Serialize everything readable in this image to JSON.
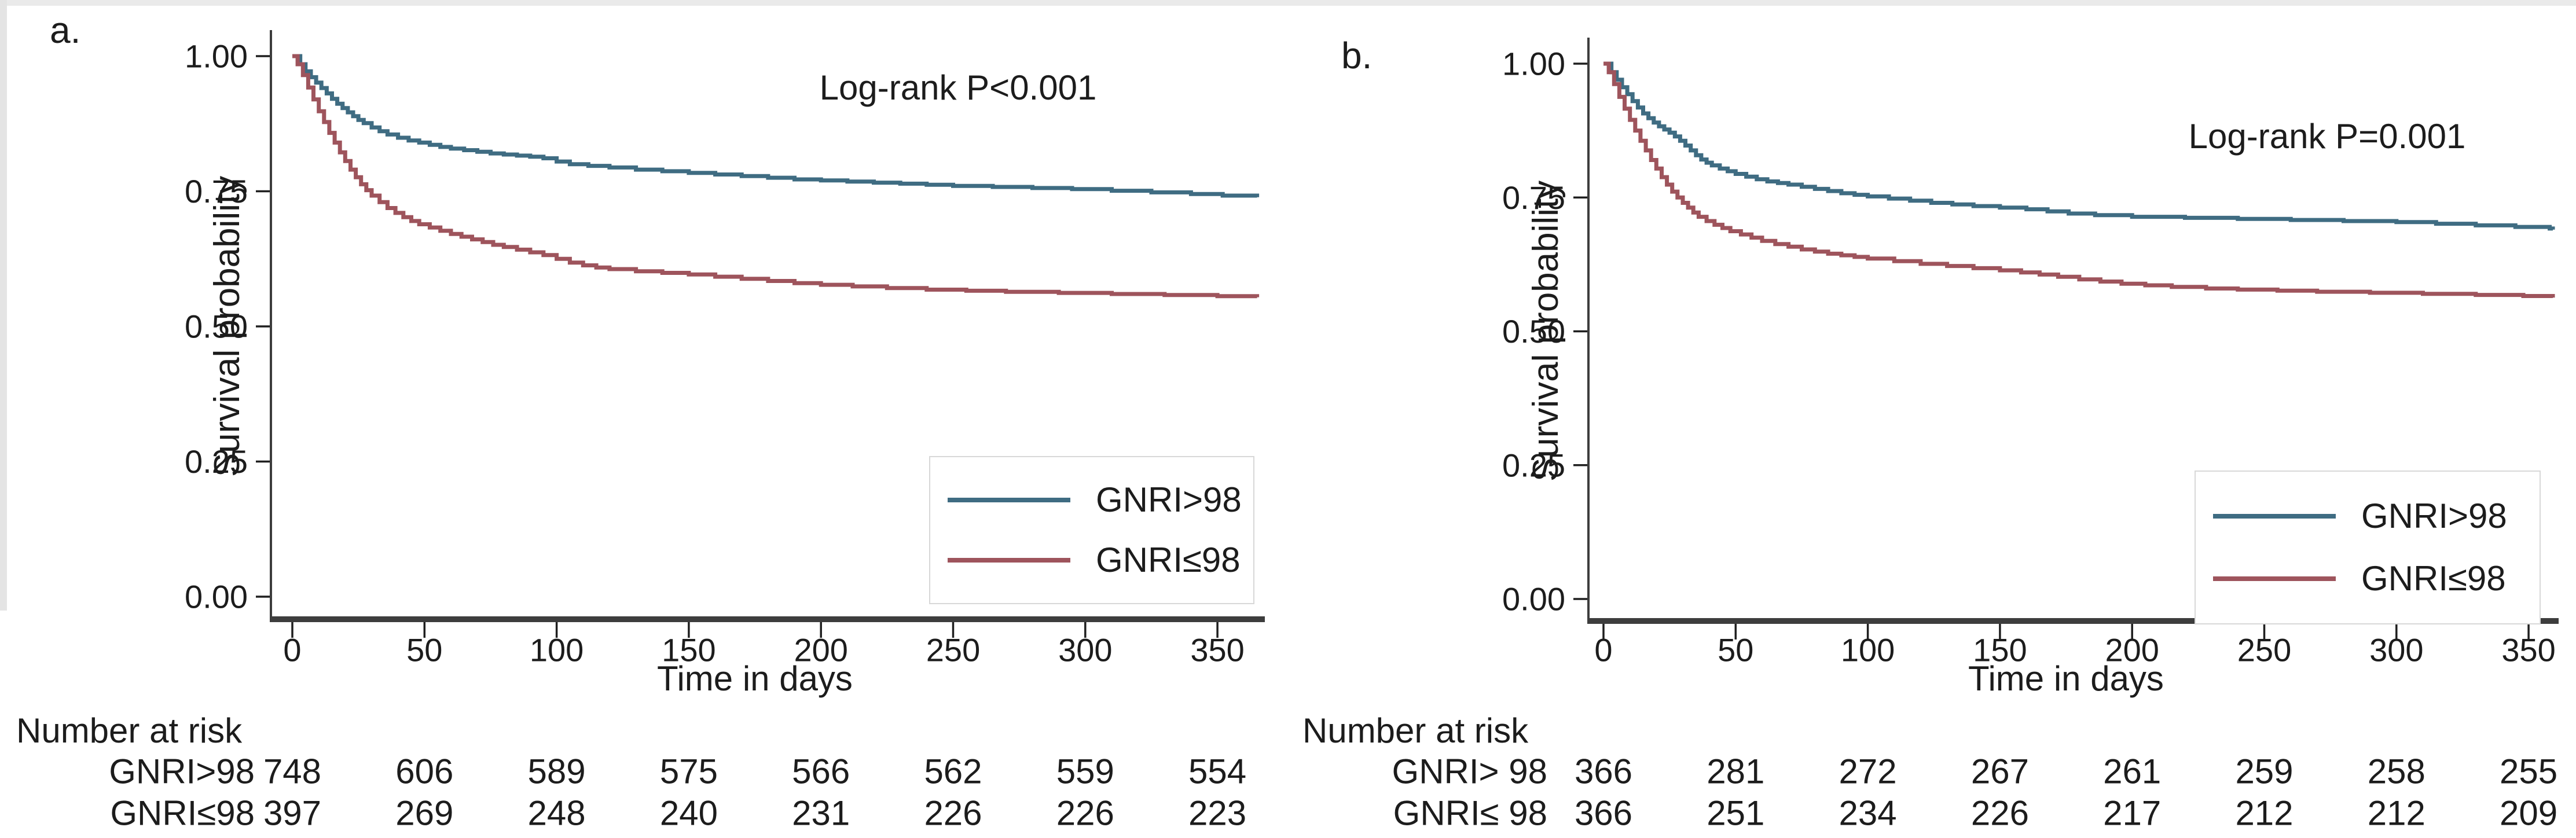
{
  "chart_data": [
    {
      "type": "line",
      "subtype": "kaplan-meier-step",
      "panel_label": "a.",
      "annotation": "Log-rank P<0.001",
      "xlabel": "Time in days",
      "ylabel": "Survival probability",
      "xlim": [
        0,
        365
      ],
      "ylim": [
        0.0,
        1.0
      ],
      "xticks": [
        0,
        50,
        100,
        150,
        200,
        250,
        300,
        350
      ],
      "yticks": [
        1.0,
        0.75,
        0.5,
        0.25,
        0.0
      ],
      "ytick_labels": [
        "1.00",
        "0.75",
        "0.50",
        "0.25",
        "0.00"
      ],
      "grid": false,
      "legend_position": "inside-bottom-right",
      "series": [
        {
          "name": "GNRI>98",
          "color": "#3f6c82",
          "points": [
            [
              0,
              1.0
            ],
            [
              3,
              0.985
            ],
            [
              5,
              0.972
            ],
            [
              7,
              0.961
            ],
            [
              9,
              0.951
            ],
            [
              11,
              0.941
            ],
            [
              13,
              0.931
            ],
            [
              15,
              0.921
            ],
            [
              17,
              0.912
            ],
            [
              19,
              0.904
            ],
            [
              21,
              0.896
            ],
            [
              23,
              0.889
            ],
            [
              25,
              0.882
            ],
            [
              27,
              0.876
            ],
            [
              30,
              0.868
            ],
            [
              33,
              0.861
            ],
            [
              36,
              0.855
            ],
            [
              40,
              0.849
            ],
            [
              44,
              0.844
            ],
            [
              48,
              0.84
            ],
            [
              52,
              0.836
            ],
            [
              56,
              0.832
            ],
            [
              60,
              0.829
            ],
            [
              65,
              0.826
            ],
            [
              70,
              0.823
            ],
            [
              75,
              0.82
            ],
            [
              80,
              0.818
            ],
            [
              85,
              0.816
            ],
            [
              90,
              0.814
            ],
            [
              95,
              0.811
            ],
            [
              100,
              0.805
            ],
            [
              105,
              0.8
            ],
            [
              112,
              0.797
            ],
            [
              120,
              0.794
            ],
            [
              130,
              0.79
            ],
            [
              140,
              0.787
            ],
            [
              150,
              0.784
            ],
            [
              160,
              0.781
            ],
            [
              170,
              0.778
            ],
            [
              180,
              0.775
            ],
            [
              190,
              0.772
            ],
            [
              200,
              0.77
            ],
            [
              210,
              0.768
            ],
            [
              220,
              0.766
            ],
            [
              230,
              0.764
            ],
            [
              240,
              0.762
            ],
            [
              250,
              0.76
            ],
            [
              265,
              0.758
            ],
            [
              280,
              0.756
            ],
            [
              295,
              0.754
            ],
            [
              310,
              0.751
            ],
            [
              325,
              0.748
            ],
            [
              340,
              0.745
            ],
            [
              352,
              0.742
            ],
            [
              365,
              0.739
            ]
          ]
        },
        {
          "name": "GNRI≤98",
          "color": "#9e545c",
          "points": [
            [
              0,
              1.0
            ],
            [
              2,
              0.985
            ],
            [
              4,
              0.965
            ],
            [
              6,
              0.942
            ],
            [
              8,
              0.92
            ],
            [
              10,
              0.898
            ],
            [
              12,
              0.878
            ],
            [
              14,
              0.858
            ],
            [
              16,
              0.84
            ],
            [
              18,
              0.822
            ],
            [
              20,
              0.806
            ],
            [
              22,
              0.79
            ],
            [
              24,
              0.776
            ],
            [
              26,
              0.763
            ],
            [
              28,
              0.752
            ],
            [
              30,
              0.742
            ],
            [
              33,
              0.73
            ],
            [
              36,
              0.719
            ],
            [
              39,
              0.71
            ],
            [
              42,
              0.702
            ],
            [
              45,
              0.695
            ],
            [
              48,
              0.689
            ],
            [
              52,
              0.683
            ],
            [
              56,
              0.677
            ],
            [
              60,
              0.671
            ],
            [
              64,
              0.666
            ],
            [
              68,
              0.661
            ],
            [
              72,
              0.656
            ],
            [
              76,
              0.651
            ],
            [
              80,
              0.647
            ],
            [
              85,
              0.642
            ],
            [
              90,
              0.637
            ],
            [
              95,
              0.632
            ],
            [
              100,
              0.625
            ],
            [
              105,
              0.618
            ],
            [
              110,
              0.613
            ],
            [
              115,
              0.609
            ],
            [
              120,
              0.606
            ],
            [
              130,
              0.602
            ],
            [
              140,
              0.599
            ],
            [
              150,
              0.596
            ],
            [
              160,
              0.592
            ],
            [
              170,
              0.588
            ],
            [
              180,
              0.584
            ],
            [
              190,
              0.58
            ],
            [
              200,
              0.577
            ],
            [
              212,
              0.574
            ],
            [
              225,
              0.571
            ],
            [
              240,
              0.568
            ],
            [
              255,
              0.566
            ],
            [
              270,
              0.564
            ],
            [
              290,
              0.562
            ],
            [
              310,
              0.56
            ],
            [
              330,
              0.558
            ],
            [
              350,
              0.556
            ],
            [
              365,
              0.554
            ]
          ]
        }
      ],
      "risk_table": {
        "header": "Number at risk",
        "days": [
          0,
          50,
          100,
          150,
          200,
          250,
          300,
          350
        ],
        "rows": [
          {
            "label": "GNRI>98",
            "counts": [
              748,
              606,
              589,
              575,
              566,
              562,
              559,
              554
            ]
          },
          {
            "label": "GNRI≤98",
            "counts": [
              397,
              269,
              248,
              240,
              231,
              226,
              226,
              223
            ]
          }
        ]
      }
    },
    {
      "type": "line",
      "subtype": "kaplan-meier-step",
      "panel_label": "b.",
      "annotation": "Log-rank P=0.001",
      "xlabel": "Time in days",
      "ylabel": "Survival probability",
      "xlim": [
        0,
        365
      ],
      "ylim": [
        0.0,
        1.0
      ],
      "xticks": [
        0,
        50,
        100,
        150,
        200,
        250,
        300,
        350
      ],
      "yticks": [
        1.0,
        0.75,
        0.5,
        0.25,
        0.0
      ],
      "ytick_labels": [
        "1.00",
        "0.75",
        "0.50",
        "0.25",
        "0.00"
      ],
      "grid": false,
      "legend_position": "inside-bottom-right",
      "series": [
        {
          "name": "GNRI>98",
          "color": "#3f6c82",
          "points": [
            [
              0,
              1.0
            ],
            [
              3,
              0.984
            ],
            [
              5,
              0.97
            ],
            [
              7,
              0.956
            ],
            [
              9,
              0.943
            ],
            [
              11,
              0.93
            ],
            [
              13,
              0.918
            ],
            [
              15,
              0.907
            ],
            [
              17,
              0.898
            ],
            [
              19,
              0.89
            ],
            [
              21,
              0.883
            ],
            [
              23,
              0.877
            ],
            [
              25,
              0.871
            ],
            [
              27,
              0.864
            ],
            [
              29,
              0.856
            ],
            [
              31,
              0.847
            ],
            [
              33,
              0.838
            ],
            [
              35,
              0.829
            ],
            [
              37,
              0.821
            ],
            [
              39,
              0.815
            ],
            [
              41,
              0.81
            ],
            [
              44,
              0.804
            ],
            [
              47,
              0.799
            ],
            [
              50,
              0.794
            ],
            [
              54,
              0.789
            ],
            [
              58,
              0.784
            ],
            [
              62,
              0.78
            ],
            [
              66,
              0.777
            ],
            [
              70,
              0.774
            ],
            [
              75,
              0.77
            ],
            [
              80,
              0.766
            ],
            [
              85,
              0.762
            ],
            [
              90,
              0.758
            ],
            [
              95,
              0.755
            ],
            [
              100,
              0.752
            ],
            [
              108,
              0.748
            ],
            [
              116,
              0.744
            ],
            [
              124,
              0.74
            ],
            [
              132,
              0.737
            ],
            [
              140,
              0.734
            ],
            [
              150,
              0.731
            ],
            [
              160,
              0.728
            ],
            [
              168,
              0.724
            ],
            [
              176,
              0.72
            ],
            [
              186,
              0.717
            ],
            [
              200,
              0.714
            ],
            [
              220,
              0.712
            ],
            [
              240,
              0.71
            ],
            [
              260,
              0.708
            ],
            [
              280,
              0.706
            ],
            [
              300,
              0.704
            ],
            [
              315,
              0.701
            ],
            [
              330,
              0.698
            ],
            [
              345,
              0.695
            ],
            [
              358,
              0.692
            ],
            [
              365,
              0.69
            ]
          ]
        },
        {
          "name": "GNRI≤98",
          "color": "#9e545c",
          "points": [
            [
              0,
              1.0
            ],
            [
              2,
              0.984
            ],
            [
              4,
              0.962
            ],
            [
              6,
              0.938
            ],
            [
              8,
              0.916
            ],
            [
              10,
              0.895
            ],
            [
              12,
              0.875
            ],
            [
              14,
              0.856
            ],
            [
              16,
              0.838
            ],
            [
              18,
              0.82
            ],
            [
              20,
              0.804
            ],
            [
              22,
              0.788
            ],
            [
              24,
              0.774
            ],
            [
              26,
              0.761
            ],
            [
              28,
              0.75
            ],
            [
              30,
              0.74
            ],
            [
              32,
              0.731
            ],
            [
              34,
              0.722
            ],
            [
              36,
              0.714
            ],
            [
              39,
              0.706
            ],
            [
              42,
              0.699
            ],
            [
              45,
              0.693
            ],
            [
              48,
              0.687
            ],
            [
              52,
              0.681
            ],
            [
              56,
              0.675
            ],
            [
              60,
              0.669
            ],
            [
              65,
              0.663
            ],
            [
              70,
              0.658
            ],
            [
              75,
              0.653
            ],
            [
              80,
              0.649
            ],
            [
              85,
              0.645
            ],
            [
              90,
              0.642
            ],
            [
              95,
              0.639
            ],
            [
              100,
              0.636
            ],
            [
              110,
              0.631
            ],
            [
              120,
              0.626
            ],
            [
              130,
              0.622
            ],
            [
              140,
              0.618
            ],
            [
              150,
              0.614
            ],
            [
              158,
              0.61
            ],
            [
              165,
              0.606
            ],
            [
              172,
              0.602
            ],
            [
              180,
              0.597
            ],
            [
              188,
              0.593
            ],
            [
              196,
              0.589
            ],
            [
              205,
              0.586
            ],
            [
              215,
              0.583
            ],
            [
              228,
              0.58
            ],
            [
              240,
              0.578
            ],
            [
              255,
              0.576
            ],
            [
              270,
              0.574
            ],
            [
              290,
              0.572
            ],
            [
              310,
              0.57
            ],
            [
              330,
              0.568
            ],
            [
              348,
              0.566
            ],
            [
              365,
              0.563
            ]
          ]
        }
      ],
      "risk_table": {
        "header": "Number at risk",
        "days": [
          0,
          50,
          100,
          150,
          200,
          250,
          300,
          350
        ],
        "rows": [
          {
            "label": "GNRI> 98",
            "counts": [
              366,
              281,
              272,
              267,
              261,
              259,
              258,
              255
            ]
          },
          {
            "label": "GNRI≤ 98",
            "counts": [
              366,
              251,
              234,
              226,
              217,
              212,
              212,
              209
            ]
          }
        ]
      }
    }
  ],
  "style": {
    "axis_color": "#3d3d3d",
    "tick_color": "#1f1f1f",
    "text_color": "#1c1c1c",
    "background": "#ffffff"
  }
}
